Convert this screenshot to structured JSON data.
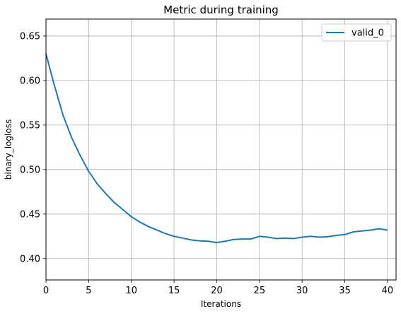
{
  "chart_data": {
    "type": "line",
    "title": "Metric during training",
    "xlabel": "Iterations",
    "ylabel": "binary_logloss",
    "xlim": [
      0,
      41
    ],
    "ylim": [
      0.376,
      0.669
    ],
    "xticks": [
      0,
      5,
      10,
      15,
      20,
      25,
      30,
      35,
      40
    ],
    "yticks": [
      0.4,
      0.45,
      0.5,
      0.55,
      0.6,
      0.65
    ],
    "ytick_labels": [
      "0.40",
      "0.45",
      "0.50",
      "0.55",
      "0.60",
      "0.65"
    ],
    "grid": true,
    "legend_position": "top-right",
    "series": [
      {
        "name": "valid_0",
        "color": "#1f77b4",
        "x": [
          0,
          1,
          2,
          3,
          4,
          5,
          6,
          7,
          8,
          9,
          10,
          11,
          12,
          13,
          14,
          15,
          16,
          17,
          18,
          19,
          20,
          21,
          22,
          23,
          24,
          25,
          26,
          27,
          28,
          29,
          30,
          31,
          32,
          33,
          34,
          35,
          36,
          37,
          38,
          39,
          40
        ],
        "y": [
          0.63,
          0.594,
          0.561,
          0.536,
          0.516,
          0.498,
          0.484,
          0.473,
          0.463,
          0.455,
          0.447,
          0.441,
          0.436,
          0.432,
          0.428,
          0.425,
          0.423,
          0.421,
          0.42,
          0.4195,
          0.418,
          0.4195,
          0.4215,
          0.422,
          0.422,
          0.425,
          0.424,
          0.4225,
          0.423,
          0.4225,
          0.424,
          0.425,
          0.424,
          0.4245,
          0.426,
          0.427,
          0.43,
          0.431,
          0.432,
          0.4335,
          0.432
        ]
      }
    ]
  }
}
